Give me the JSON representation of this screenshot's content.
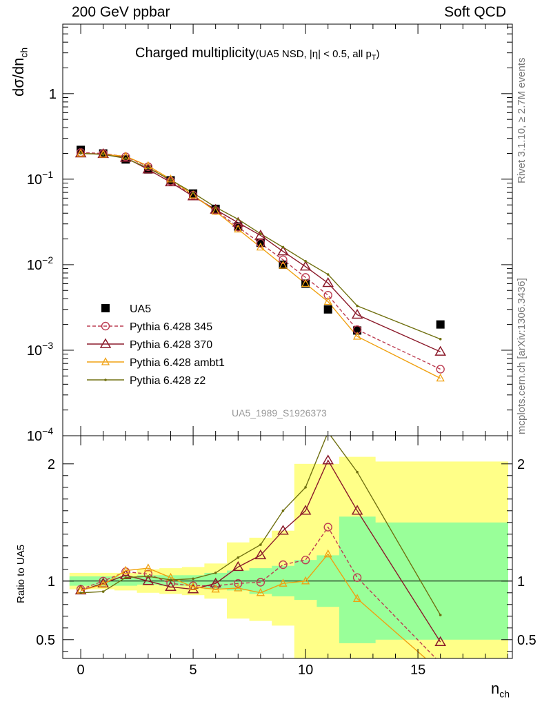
{
  "header": {
    "left": "200 GeV ppbar",
    "right": "Soft QCD"
  },
  "side": {
    "rivet": "Rivet 3.1.10, ≥ 2.7M events",
    "url": "mcplots.cern.ch [arXiv:1306.3436]"
  },
  "title": {
    "main": "Charged multiplicity",
    "sub_prefix": "(UA5 NSD, |η| < 0.5, all p",
    "sub_index": "T",
    "sub_suffix": ")"
  },
  "axes": {
    "ylabel_main": "dσ/dn",
    "ylabel_main_sub": "ch",
    "ylabel_ratio": "Ratio to UA5",
    "xlabel": "n",
    "xlabel_sub": "ch"
  },
  "analysis_id": "UA5_1989_S1926373",
  "colors": {
    "data": "#000000",
    "p345": "#bc3c51",
    "p370": "#8b1a2a",
    "ambt1": "#f0a010",
    "z2": "#707010",
    "band_inner": "#99ff99",
    "band_outer": "#ffff88"
  },
  "chart_data": [
    {
      "type": "scatter",
      "xlim": [
        -0.8,
        19.2
      ],
      "ylim": [
        0.0001,
        6.5
      ],
      "y_scale": "log",
      "ytick_labels": [
        "10^-4",
        "10^-3",
        "10^-2",
        "10^-1",
        "1"
      ],
      "xtick_labels": [
        "0",
        "5",
        "10",
        "15"
      ],
      "legend_position": "lower-left",
      "series": [
        {
          "name": "UA5",
          "marker": "square",
          "x": [
            0,
            1,
            2,
            3,
            4,
            5,
            6,
            7,
            8,
            9,
            10,
            11,
            12.3,
            16
          ],
          "y": [
            0.22,
            0.2,
            0.17,
            0.13,
            0.097,
            0.068,
            0.045,
            0.028,
            0.018,
            0.01,
            0.006,
            0.003,
            0.0017,
            0.002
          ]
        },
        {
          "name": "Pythia 6.428 345",
          "marker": "circle",
          "dash": true,
          "x": [
            0,
            1,
            2,
            3,
            4,
            5,
            6,
            7,
            8,
            9,
            10,
            11,
            12.3,
            16
          ],
          "y": [
            0.205,
            0.2,
            0.183,
            0.14,
            0.095,
            0.065,
            0.043,
            0.0275,
            0.0178,
            0.0114,
            0.0071,
            0.0044,
            0.00174,
            0.0006
          ]
        },
        {
          "name": "Pythia 6.428 370",
          "marker": "triangle",
          "x": [
            0,
            1,
            2,
            3,
            4,
            5,
            6,
            7,
            8,
            9,
            10,
            11,
            12.3,
            16
          ],
          "y": [
            0.2,
            0.197,
            0.178,
            0.13,
            0.092,
            0.063,
            0.044,
            0.031,
            0.022,
            0.0143,
            0.0095,
            0.0061,
            0.0026,
            0.00096
          ]
        },
        {
          "name": "Pythia 6.428 ambt1",
          "marker": "small-triangle",
          "x": [
            0,
            1,
            2,
            3,
            4,
            5,
            6,
            7,
            8,
            9,
            10,
            11,
            12.3,
            16
          ],
          "y": [
            0.2,
            0.195,
            0.185,
            0.143,
            0.1,
            0.065,
            0.042,
            0.026,
            0.016,
            0.0098,
            0.006,
            0.0037,
            0.00145,
            0.00047
          ]
        },
        {
          "name": "Pythia 6.428 z2",
          "marker": "dot",
          "x": [
            0,
            1,
            2,
            3,
            4,
            5,
            6,
            7,
            8,
            9,
            10,
            11,
            12.3,
            16
          ],
          "y": [
            0.2,
            0.195,
            0.175,
            0.135,
            0.098,
            0.069,
            0.047,
            0.034,
            0.023,
            0.016,
            0.011,
            0.0077,
            0.0033,
            0.00135
          ]
        }
      ]
    },
    {
      "type": "line",
      "xlim": [
        -0.8,
        19.2
      ],
      "ylim": [
        0.34,
        2.24
      ],
      "ytick_labels": [
        "0.5",
        "1",
        "2"
      ],
      "xtick_labels": [
        "0",
        "5",
        "10",
        "15"
      ],
      "bands": {
        "edges": [
          -0.5,
          0.5,
          1.5,
          2.5,
          3.5,
          4.5,
          5.5,
          6.5,
          7.5,
          8.5,
          9.5,
          10.5,
          11.5,
          13.1,
          19
        ],
        "inner_low": [
          0.96,
          0.96,
          0.96,
          0.97,
          0.96,
          0.96,
          0.93,
          0.92,
          0.89,
          0.87,
          0.84,
          0.78,
          0.47,
          0.5
        ],
        "inner_high": [
          1.04,
          1.04,
          1.04,
          1.05,
          1.05,
          1.05,
          1.07,
          1.09,
          1.11,
          1.13,
          1.18,
          1.22,
          1.55,
          1.5
        ],
        "outer_low": [
          0.93,
          0.93,
          0.92,
          0.9,
          0.89,
          0.88,
          0.85,
          0.68,
          0.66,
          0.62,
          0.2,
          0.2,
          0.2,
          0.2
        ],
        "outer_high": [
          1.07,
          1.07,
          1.07,
          1.1,
          1.11,
          1.12,
          1.15,
          1.33,
          1.37,
          1.43,
          2.0,
          2.0,
          2.06,
          2.02
        ]
      },
      "series": [
        {
          "name": "Pythia 6.428 345",
          "x": [
            0,
            1,
            2,
            3,
            4,
            5,
            6,
            7,
            8,
            9,
            10,
            11,
            12.3,
            16
          ],
          "y": [
            0.93,
            1.0,
            1.08,
            1.06,
            0.98,
            0.96,
            0.96,
            0.98,
            0.99,
            1.14,
            1.18,
            1.46,
            1.03,
            0.3
          ]
        },
        {
          "name": "Pythia 6.428 370",
          "x": [
            0,
            1,
            2,
            3,
            4,
            5,
            6,
            7,
            8,
            9,
            10,
            11,
            12.3,
            16
          ],
          "y": [
            0.92,
            0.98,
            1.05,
            1.0,
            0.95,
            0.93,
            0.98,
            1.12,
            1.22,
            1.43,
            1.6,
            2.03,
            1.6,
            0.48
          ]
        },
        {
          "name": "Pythia 6.428 ambt1",
          "x": [
            0,
            1,
            2,
            3,
            4,
            5,
            6,
            7,
            8,
            9,
            10,
            11,
            12.3,
            16
          ],
          "y": [
            0.92,
            0.97,
            1.09,
            1.11,
            1.03,
            0.95,
            0.93,
            0.94,
            0.9,
            0.98,
            1.0,
            1.23,
            0.85,
            0.23
          ]
        },
        {
          "name": "Pythia 6.428 z2",
          "x": [
            0,
            1,
            2,
            3,
            4,
            5,
            6,
            7,
            8,
            9,
            10,
            11,
            12.3,
            16
          ],
          "y": [
            0.9,
            0.91,
            1.03,
            1.04,
            1.01,
            1.02,
            1.07,
            1.2,
            1.31,
            1.6,
            1.8,
            2.27,
            1.93,
            0.71
          ]
        }
      ]
    }
  ]
}
